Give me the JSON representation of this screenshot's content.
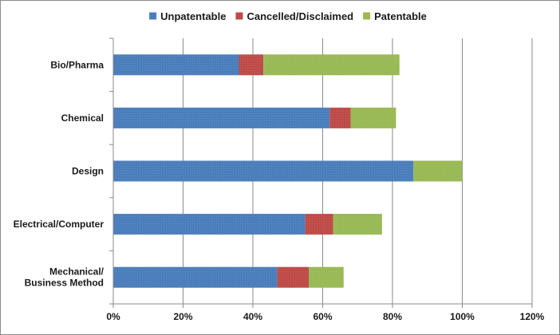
{
  "chart_data": {
    "type": "bar",
    "orientation": "horizontal",
    "stacked": true,
    "categories": [
      "Bio/Pharma",
      "Chemical",
      "Design",
      "Electrical/Computer",
      "Mechanical/\nBusiness Method"
    ],
    "series": [
      {
        "name": "Unpatentable",
        "color": "#4a7ebb",
        "values": [
          0.36,
          0.62,
          0.86,
          0.55,
          0.47
        ]
      },
      {
        "name": "Cancelled/Disclaimed",
        "color": "#be4b48",
        "values": [
          0.07,
          0.06,
          0.0,
          0.08,
          0.09
        ]
      },
      {
        "name": "Patentable",
        "color": "#98b954",
        "values": [
          0.39,
          0.13,
          0.14,
          0.14,
          0.1
        ]
      }
    ],
    "xlim": [
      0,
      1.2
    ],
    "xticks": [
      0,
      0.2,
      0.4,
      0.6,
      0.8,
      1.0,
      1.2
    ],
    "xtick_labels": [
      "0%",
      "20%",
      "40%",
      "60%",
      "80%",
      "100%",
      "120%"
    ],
    "grid": "vertical",
    "legend_position": "top"
  }
}
